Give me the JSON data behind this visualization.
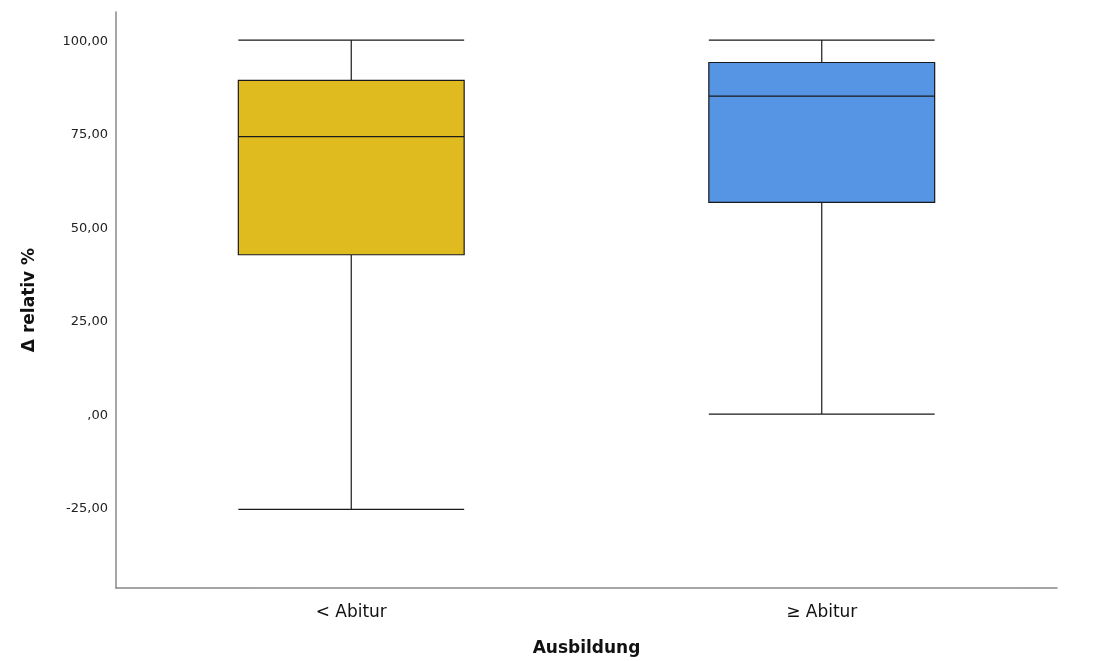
{
  "chart_data": {
    "type": "box",
    "xlabel": "Ausbildung",
    "ylabel": "Δ relativ %",
    "categories": [
      "< Abitur",
      "≥ Abitur"
    ],
    "boxes": [
      {
        "low": -25.5,
        "q1": 42.6,
        "median": 74.2,
        "q3": 89.2,
        "high": 100
      },
      {
        "low": 0,
        "q1": 56.6,
        "median": 85,
        "q3": 94,
        "high": 100
      }
    ],
    "colors": [
      "#dfbb1f",
      "#5595e3"
    ],
    "ylim": [
      -46.5,
      107.5
    ],
    "yticks": [
      {
        "value": -25,
        "label": "-25,00"
      },
      {
        "value": 0,
        "label": ",00"
      },
      {
        "value": 25,
        "label": "25,00"
      },
      {
        "value": 50,
        "label": "50,00"
      },
      {
        "value": 75,
        "label": "75,00"
      },
      {
        "value": 100,
        "label": "100,00"
      }
    ],
    "grid": false
  }
}
